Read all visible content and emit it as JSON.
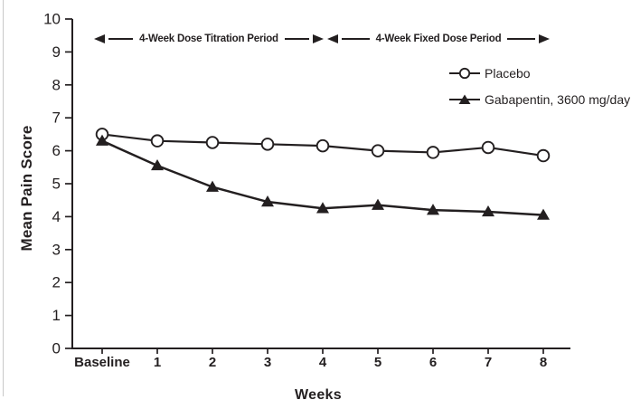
{
  "figure": {
    "background": "#ffffff",
    "ink_color": "#231f20"
  },
  "chart_data": {
    "type": "line",
    "title": "",
    "xlabel": "Weeks",
    "ylabel": "Mean Pain Score",
    "categories": [
      "Baseline",
      "1",
      "2",
      "3",
      "4",
      "5",
      "6",
      "7",
      "8"
    ],
    "series": [
      {
        "name": "Placebo",
        "marker": "open-circle",
        "color": "#231f20",
        "values": [
          6.5,
          6.3,
          6.25,
          6.2,
          6.15,
          6.0,
          5.95,
          6.1,
          5.85
        ]
      },
      {
        "name": "Gabapentin, 3600 mg/day",
        "marker": "filled-triangle",
        "color": "#231f20",
        "values": [
          6.3,
          5.55,
          4.9,
          4.45,
          4.25,
          4.35,
          4.2,
          4.15,
          4.05
        ]
      }
    ],
    "ylim": [
      0,
      10
    ],
    "ytick_step": 1,
    "grid": false,
    "legend_position": "inside-upper-right",
    "annotations": [
      {
        "text": "4-Week Dose Titration Period",
        "x_start_category": "Baseline",
        "x_end_category": "4"
      },
      {
        "text": "4-Week Fixed Dose Period",
        "x_start_category": "4",
        "x_end_category": "8"
      }
    ]
  }
}
